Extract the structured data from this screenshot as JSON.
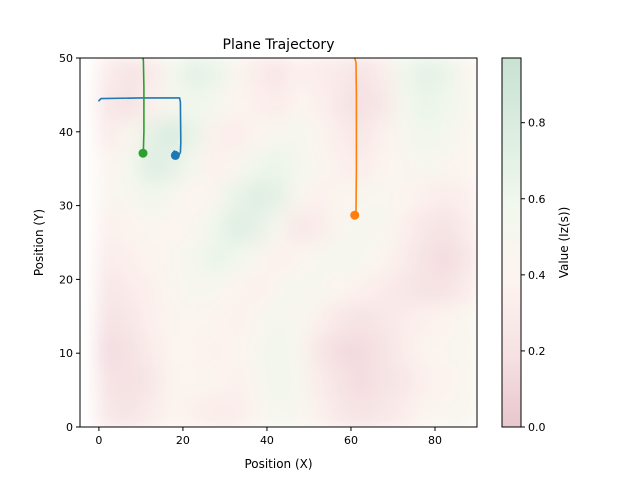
{
  "chart_data": {
    "type": "heatmap",
    "title": "Plane Trajectory",
    "xlabel": "Position (X)",
    "ylabel": "Position (Y)",
    "xlim": [
      -4.5,
      90
    ],
    "ylim": [
      0,
      50
    ],
    "xticks": [
      0,
      20,
      40,
      60,
      80
    ],
    "yticks": [
      0,
      10,
      20,
      30,
      40,
      50
    ],
    "colorbar": {
      "label": "Value (Iz(s))",
      "range": [
        0.0,
        0.97
      ],
      "ticks": [
        0.0,
        0.2,
        0.4,
        0.6,
        0.8
      ],
      "colormap": [
        "#e8c6cd",
        "#f6e2e4",
        "#fdf4ef",
        "#f2f8ed",
        "#dcede1",
        "#c8e2d3"
      ]
    },
    "heatmap": {
      "x_extent": [
        0,
        90
      ],
      "y_extent": [
        0,
        50
      ],
      "rows": [
        [
          0.3,
          0.22,
          0.28,
          0.55,
          0.7,
          0.65,
          0.45,
          0.3,
          0.25,
          0.35,
          0.3,
          0.28,
          0.2,
          0.3,
          0.6,
          0.7,
          0.65,
          0.45
        ],
        [
          0.25,
          0.2,
          0.35,
          0.55,
          0.6,
          0.55,
          0.4,
          0.35,
          0.3,
          0.4,
          0.35,
          0.25,
          0.18,
          0.25,
          0.55,
          0.65,
          0.6,
          0.5
        ],
        [
          0.3,
          0.45,
          0.7,
          0.8,
          0.65,
          0.35,
          0.3,
          0.4,
          0.5,
          0.55,
          0.4,
          0.3,
          0.25,
          0.35,
          0.5,
          0.6,
          0.55,
          0.45
        ],
        [
          0.4,
          0.55,
          0.75,
          0.7,
          0.55,
          0.35,
          0.45,
          0.6,
          0.65,
          0.55,
          0.45,
          0.35,
          0.3,
          0.4,
          0.45,
          0.5,
          0.45,
          0.4
        ],
        [
          0.45,
          0.5,
          0.6,
          0.5,
          0.4,
          0.45,
          0.65,
          0.75,
          0.7,
          0.45,
          0.35,
          0.4,
          0.45,
          0.5,
          0.4,
          0.35,
          0.3,
          0.35
        ],
        [
          0.35,
          0.4,
          0.45,
          0.4,
          0.45,
          0.6,
          0.75,
          0.7,
          0.5,
          0.25,
          0.3,
          0.45,
          0.55,
          0.5,
          0.35,
          0.25,
          0.2,
          0.3
        ],
        [
          0.3,
          0.35,
          0.4,
          0.45,
          0.55,
          0.65,
          0.6,
          0.45,
          0.35,
          0.4,
          0.5,
          0.55,
          0.5,
          0.4,
          0.3,
          0.2,
          0.15,
          0.25
        ],
        [
          0.25,
          0.3,
          0.35,
          0.45,
          0.5,
          0.5,
          0.4,
          0.35,
          0.45,
          0.55,
          0.5,
          0.4,
          0.35,
          0.3,
          0.25,
          0.2,
          0.2,
          0.3
        ],
        [
          0.2,
          0.25,
          0.35,
          0.4,
          0.45,
          0.4,
          0.35,
          0.45,
          0.55,
          0.5,
          0.35,
          0.25,
          0.2,
          0.25,
          0.3,
          0.35,
          0.4,
          0.45
        ],
        [
          0.15,
          0.2,
          0.3,
          0.4,
          0.4,
          0.35,
          0.4,
          0.5,
          0.6,
          0.45,
          0.25,
          0.15,
          0.15,
          0.2,
          0.3,
          0.4,
          0.45,
          0.5
        ],
        [
          0.2,
          0.18,
          0.25,
          0.4,
          0.45,
          0.4,
          0.35,
          0.45,
          0.6,
          0.5,
          0.3,
          0.2,
          0.15,
          0.2,
          0.25,
          0.35,
          0.4,
          0.45
        ],
        [
          0.25,
          0.22,
          0.3,
          0.4,
          0.35,
          0.3,
          0.3,
          0.4,
          0.55,
          0.5,
          0.35,
          0.25,
          0.2,
          0.25,
          0.3,
          0.4,
          0.45,
          0.5
        ]
      ]
    },
    "series": [
      {
        "color": "#1f77b4",
        "x": [
          0,
          0.5,
          10,
          19.2,
          19.4,
          19.5,
          19.4,
          19.0,
          18.5,
          18.0,
          17.8,
          17.9,
          18.4,
          18.2
        ],
        "y": [
          44.2,
          44.5,
          44.6,
          44.6,
          44.0,
          38.5,
          37.2,
          36.8,
          37.1,
          37.4,
          37.3,
          36.9,
          37.3,
          36.8
        ],
        "end": [
          18.2,
          36.8
        ]
      },
      {
        "color": "#ff7f0e",
        "x": [
          60.9,
          61.2,
          61.3,
          61.3,
          61.2,
          61.0,
          60.9
        ],
        "y": [
          50,
          49.4,
          45.0,
          35.0,
          29.0,
          28.7,
          28.7
        ],
        "end": [
          60.9,
          28.7
        ]
      },
      {
        "color": "#2ca02c",
        "x": [
          10.5,
          10.6,
          10.7,
          10.7,
          10.6,
          10.5
        ],
        "y": [
          50,
          49.6,
          46.0,
          40.0,
          37.5,
          37.1
        ],
        "end": [
          10.5,
          37.1
        ]
      }
    ]
  }
}
